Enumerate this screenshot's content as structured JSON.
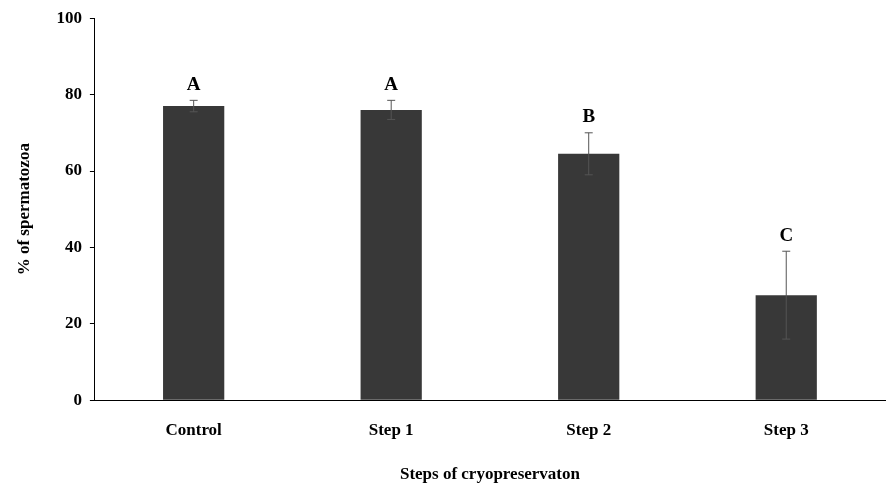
{
  "chart_data": {
    "type": "bar",
    "x_label": "Steps of cryopreservaton",
    "y_label": "% of spermatozoa",
    "categories": [
      "Control",
      "Step 1",
      "Step 2",
      "Step 3"
    ],
    "values": [
      77,
      76,
      64.5,
      27.5
    ],
    "errors": [
      1.5,
      2.5,
      5.5,
      11.5
    ],
    "annotations": [
      "A",
      "A",
      "B",
      "C"
    ],
    "color": "#383838",
    "ylim": [
      0,
      100
    ],
    "yticks": [
      0,
      20,
      40,
      60,
      80,
      100
    ],
    "grid": false
  }
}
